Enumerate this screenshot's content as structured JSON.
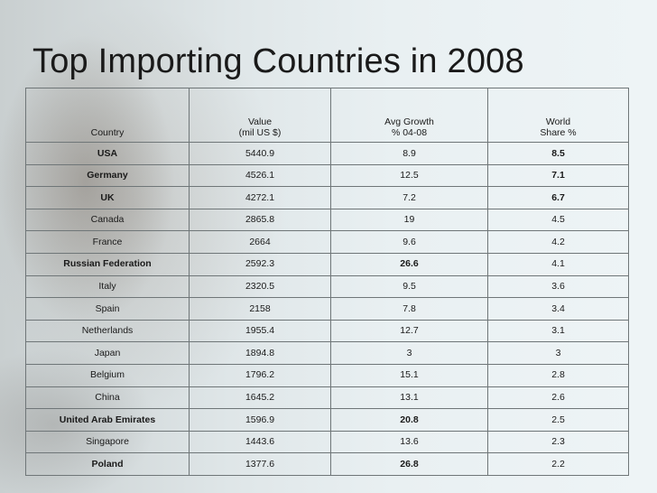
{
  "title": "Top Importing Countries in 2008",
  "table": {
    "headers": {
      "country": [
        "",
        "Country"
      ],
      "value": [
        "Value",
        "(mil US $)"
      ],
      "growth": [
        "Avg Growth",
        "% 04-08"
      ],
      "share": [
        "World",
        "Share %"
      ]
    },
    "rows": [
      {
        "country": "USA",
        "value": "5440.9",
        "growth": "8.9",
        "share": "8.5",
        "country_bold": true,
        "growth_bold": false,
        "share_bold": true
      },
      {
        "country": "Germany",
        "value": "4526.1",
        "growth": "12.5",
        "share": "7.1",
        "country_bold": true,
        "growth_bold": false,
        "share_bold": true
      },
      {
        "country": "UK",
        "value": "4272.1",
        "growth": "7.2",
        "share": "6.7",
        "country_bold": true,
        "growth_bold": false,
        "share_bold": true
      },
      {
        "country": "Canada",
        "value": "2865.8",
        "growth": "19",
        "share": "4.5",
        "country_bold": false,
        "growth_bold": false,
        "share_bold": false
      },
      {
        "country": "France",
        "value": "2664",
        "growth": "9.6",
        "share": "4.2",
        "country_bold": false,
        "growth_bold": false,
        "share_bold": false
      },
      {
        "country": "Russian Federation",
        "value": "2592.3",
        "growth": "26.6",
        "share": "4.1",
        "country_bold": true,
        "growth_bold": true,
        "share_bold": false
      },
      {
        "country": "Italy",
        "value": "2320.5",
        "growth": "9.5",
        "share": "3.6",
        "country_bold": false,
        "growth_bold": false,
        "share_bold": false
      },
      {
        "country": "Spain",
        "value": "2158",
        "growth": "7.8",
        "share": "3.4",
        "country_bold": false,
        "growth_bold": false,
        "share_bold": false
      },
      {
        "country": "Netherlands",
        "value": "1955.4",
        "growth": "12.7",
        "share": "3.1",
        "country_bold": false,
        "growth_bold": false,
        "share_bold": false
      },
      {
        "country": "Japan",
        "value": "1894.8",
        "growth": "3",
        "share": "3",
        "country_bold": false,
        "growth_bold": false,
        "share_bold": false
      },
      {
        "country": "Belgium",
        "value": "1796.2",
        "growth": "15.1",
        "share": "2.8",
        "country_bold": false,
        "growth_bold": false,
        "share_bold": false
      },
      {
        "country": "China",
        "value": "1645.2",
        "growth": "13.1",
        "share": "2.6",
        "country_bold": false,
        "growth_bold": false,
        "share_bold": false
      },
      {
        "country": "United Arab Emirates",
        "value": "1596.9",
        "growth": "20.8",
        "share": "2.5",
        "country_bold": true,
        "growth_bold": true,
        "share_bold": false
      },
      {
        "country": "Singapore",
        "value": "1443.6",
        "growth": "13.6",
        "share": "2.3",
        "country_bold": false,
        "growth_bold": false,
        "share_bold": false
      },
      {
        "country": "Poland",
        "value": "1377.6",
        "growth": "26.8",
        "share": "2.2",
        "country_bold": true,
        "growth_bold": true,
        "share_bold": false
      }
    ]
  }
}
